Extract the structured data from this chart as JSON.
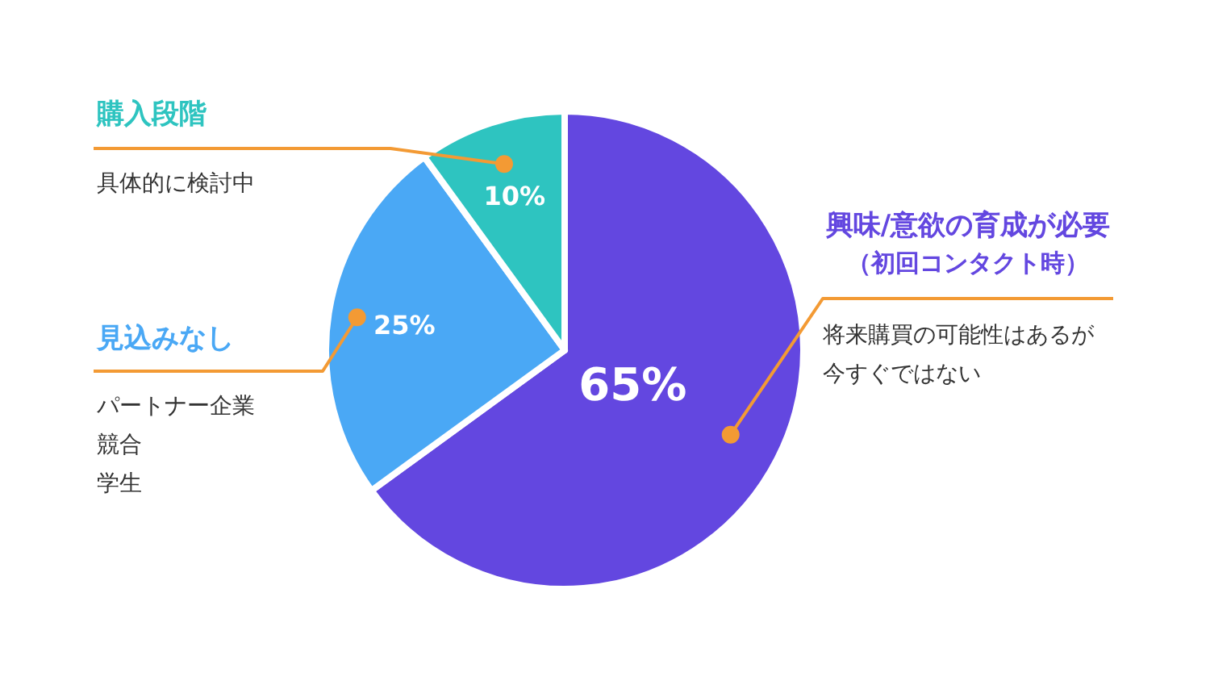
{
  "chart_data": {
    "type": "pie",
    "categories": [
      "興味/意欲の育成が必要（初回コンタクト時）",
      "見込みなし",
      "購入段階"
    ],
    "values": [
      65,
      25,
      10
    ],
    "colors": [
      "#6347e0",
      "#4aa8f5",
      "#2ec4c0"
    ],
    "value_labels": [
      "65%",
      "25%",
      "10%"
    ],
    "annotations": [
      "将来購買の可能性はあるが",
      "今すぐではない",
      "パートナー企業",
      "競合",
      "学生",
      "具体的に検討中"
    ]
  }
}
